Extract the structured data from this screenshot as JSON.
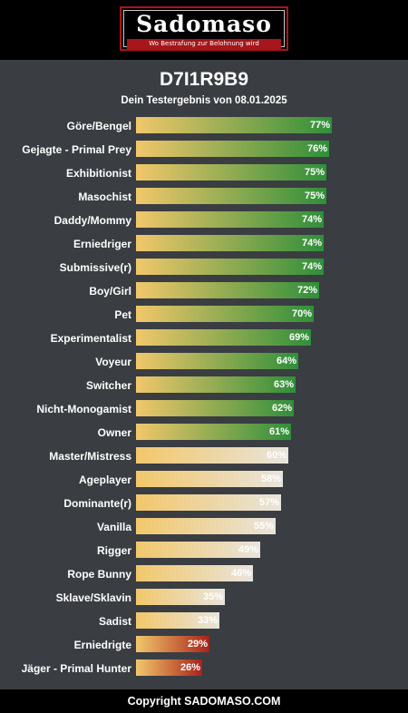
{
  "header": {
    "logo_title": "Sadomaso",
    "logo_subtitle": "Wo Bestrafung zur Belohnung wird"
  },
  "result": {
    "code": "D7I1R9B9",
    "subtitle": "Dein Testergebnis von 08.01.2025"
  },
  "chart_data": {
    "type": "bar",
    "orientation": "horizontal",
    "categories": [
      "Göre/Bengel",
      "Gejagte - Primal Prey",
      "Exhibitionist",
      "Masochist",
      "Daddy/Mommy",
      "Erniedriger",
      "Submissive(r)",
      "Boy/Girl",
      "Pet",
      "Experimentalist",
      "Voyeur",
      "Switcher",
      "Nicht-Monogamist",
      "Owner",
      "Master/Mistress",
      "Ageplayer",
      "Dominante(r)",
      "Vanilla",
      "Rigger",
      "Rope Bunny",
      "Sklave/Sklavin",
      "Sadist",
      "Erniedrigte",
      "Jäger - Primal Hunter"
    ],
    "values": [
      77,
      76,
      75,
      75,
      74,
      74,
      74,
      72,
      70,
      69,
      64,
      63,
      62,
      61,
      60,
      58,
      57,
      55,
      49,
      46,
      35,
      33,
      29,
      26
    ],
    "value_labels": [
      "77%",
      "76%",
      "75%",
      "75%",
      "74%",
      "74%",
      "74%",
      "72%",
      "70%",
      "69%",
      "64%",
      "63%",
      "62%",
      "61%",
      "60%",
      "58%",
      "57%",
      "55%",
      "49%",
      "46%",
      "35%",
      "33%",
      "29%",
      "26%"
    ],
    "xlim": [
      0,
      100
    ],
    "colors": {
      "start": "#f2c76a",
      "high": "#2f8f3a",
      "medium": "#e8e4dc",
      "low": "#a8231a"
    }
  },
  "footer": {
    "text": "Copyright SADOMASO.COM"
  }
}
